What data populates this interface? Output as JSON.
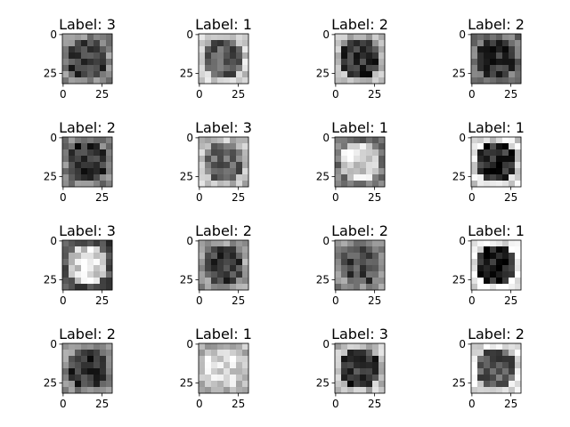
{
  "chart_data": {
    "type": "image-grid",
    "rows": 4,
    "cols": 4,
    "colormap": "gray",
    "x_ticks": [
      "0",
      "25"
    ],
    "y_ticks": [
      "0",
      "25"
    ],
    "image_size": [
      32,
      32
    ],
    "panels": [
      {
        "title": "Label: 3",
        "label": 3
      },
      {
        "title": "Label: 1",
        "label": 1
      },
      {
        "title": "Label: 2",
        "label": 2
      },
      {
        "title": "Label: 2",
        "label": 2
      },
      {
        "title": "Label: 2",
        "label": 2
      },
      {
        "title": "Label: 3",
        "label": 3
      },
      {
        "title": "Label: 1",
        "label": 1
      },
      {
        "title": "Label: 1",
        "label": 1
      },
      {
        "title": "Label: 3",
        "label": 3
      },
      {
        "title": "Label: 2",
        "label": 2
      },
      {
        "title": "Label: 2",
        "label": 2
      },
      {
        "title": "Label: 1",
        "label": 1
      },
      {
        "title": "Label: 2",
        "label": 2
      },
      {
        "title": "Label: 1",
        "label": 1
      },
      {
        "title": "Label: 3",
        "label": 3
      },
      {
        "title": "Label: 2",
        "label": 2
      }
    ]
  }
}
